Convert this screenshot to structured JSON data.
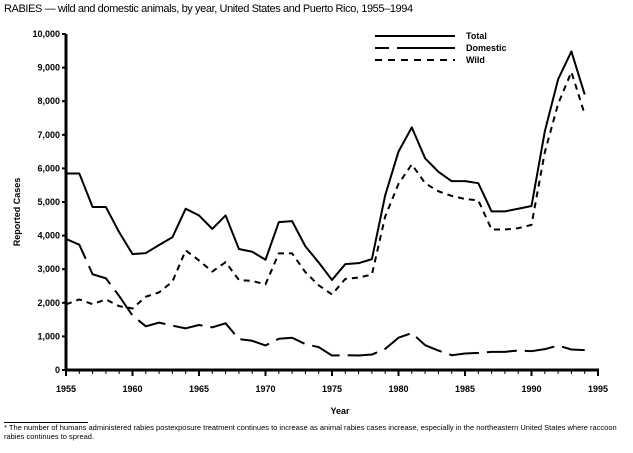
{
  "chart_data": {
    "type": "line",
    "title": "RABIES — wild and domestic animals, by year, United States and Puerto Rico, 1955–1994",
    "xlabel": "Year",
    "ylabel": "Reported Cases",
    "xlim": [
      1955,
      1995
    ],
    "ylim": [
      0,
      10000
    ],
    "xticks": [
      1955,
      1960,
      1965,
      1970,
      1975,
      1980,
      1985,
      1990,
      1995
    ],
    "xtick_labels": [
      "1955",
      "1960",
      "1965",
      "1970",
      "1975",
      "1980",
      "1985",
      "1990",
      "1995"
    ],
    "yticks": [
      0,
      1000,
      2000,
      3000,
      4000,
      5000,
      6000,
      7000,
      8000,
      9000,
      10000
    ],
    "ytick_labels": [
      "0",
      "1,000",
      "2,000",
      "3,000",
      "4,000",
      "5,000",
      "6,000",
      "7,000",
      "8,000",
      "9,000",
      "10,000"
    ],
    "grid": false,
    "legend_position": "top-right",
    "x": [
      1955,
      1956,
      1957,
      1958,
      1959,
      1960,
      1961,
      1962,
      1963,
      1964,
      1965,
      1966,
      1967,
      1968,
      1969,
      1970,
      1971,
      1972,
      1973,
      1974,
      1975,
      1976,
      1977,
      1978,
      1979,
      1980,
      1981,
      1982,
      1983,
      1984,
      1985,
      1986,
      1987,
      1988,
      1989,
      1990,
      1991,
      1992,
      1993,
      1994
    ],
    "series": [
      {
        "name": "Total",
        "style": "solid",
        "values": [
          5850,
          5850,
          4850,
          4850,
          4100,
          3450,
          3480,
          3720,
          3950,
          4800,
          4600,
          4200,
          4600,
          3600,
          3520,
          3280,
          4400,
          4430,
          3680,
          3200,
          2680,
          3150,
          3180,
          3300,
          5200,
          6500,
          7220,
          6300,
          5900,
          5620,
          5620,
          5560,
          4720,
          4720,
          4800,
          4880,
          7100,
          8650,
          9480,
          8200
        ]
      },
      {
        "name": "Domestic",
        "style": "long-dash",
        "values": [
          3900,
          3730,
          2850,
          2730,
          2200,
          1620,
          1300,
          1410,
          1320,
          1240,
          1340,
          1270,
          1390,
          920,
          870,
          730,
          930,
          960,
          770,
          680,
          430,
          440,
          430,
          460,
          630,
          960,
          1100,
          740,
          580,
          440,
          490,
          510,
          540,
          540,
          580,
          560,
          620,
          730,
          610,
          590
        ]
      },
      {
        "name": "Wild",
        "style": "short-dash",
        "values": [
          1950,
          2100,
          1960,
          2100,
          1900,
          1830,
          2180,
          2310,
          2630,
          3560,
          3260,
          2930,
          3210,
          2680,
          2650,
          2550,
          3470,
          3470,
          2910,
          2520,
          2250,
          2710,
          2750,
          2840,
          4570,
          5540,
          6120,
          5560,
          5320,
          5180,
          5090,
          5050,
          4180,
          4180,
          4220,
          4320,
          6480,
          7920,
          8870,
          7610
        ]
      }
    ],
    "footnote": "* The number of humans administered rabies postexposure treatment continues to increase as animal rabies cases increase, especially in the northeastern United States where raccoon rabies continues to spread."
  }
}
